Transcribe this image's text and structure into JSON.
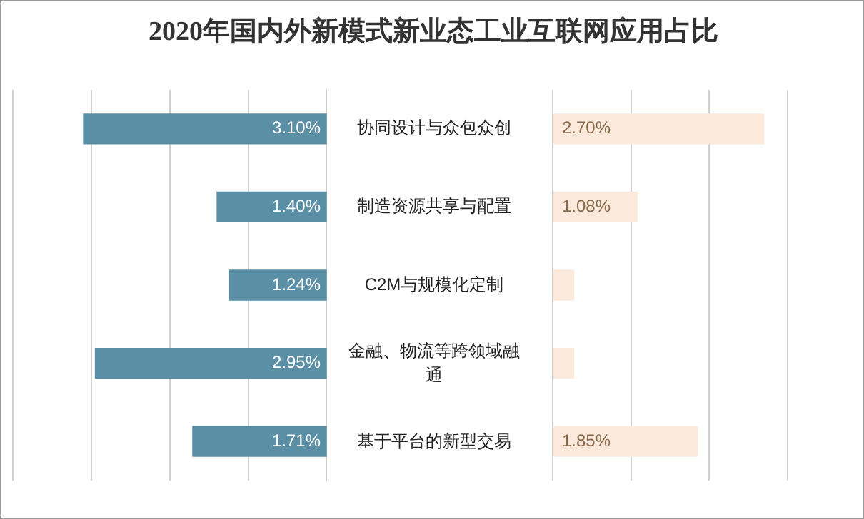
{
  "chart_data": [
    {
      "type": "bar",
      "title": "2020年国内外新模式新业态工业互联网应用占比",
      "orientation": "horizontal",
      "categories": [
        "协同设计与众包众创",
        "制造资源共享与配置",
        "C2M与规模化定制",
        "金融、物流等跨领域融通",
        "基于平台的新型交易"
      ],
      "series": [
        {
          "color": "#5b8fa6",
          "values": [
            3.1,
            1.4,
            1.24,
            2.95,
            1.71
          ],
          "value_labels": [
            "3.10%",
            "1.40%",
            "1.24%",
            "2.95%",
            "1.71%"
          ]
        }
      ],
      "xlim": [
        4,
        0
      ],
      "xticks": [
        {
          "value": 4,
          "label": null
        },
        {
          "value": 3,
          "label": null
        },
        {
          "value": 2,
          "label": null
        },
        {
          "value": 1,
          "label": null
        },
        {
          "value": 0,
          "label": null
        }
      ],
      "grid": "x",
      "tick_labels": "y",
      "legend": false
    },
    {
      "type": "bar",
      "orientation": "horizontal",
      "categories": [
        null,
        null,
        null,
        null,
        null
      ],
      "series": [
        {
          "color": "#fbeadb",
          "values": [
            2.7,
            1.08,
            0.27,
            0.27,
            1.85
          ],
          "value_labels": [
            "2.70%",
            "1.08%",
            null,
            null,
            "1.85%"
          ]
        }
      ],
      "xlim": [
        0,
        4
      ],
      "xticks": [
        {
          "value": 0,
          "label": null
        },
        {
          "value": 1,
          "label": null
        },
        {
          "value": 2,
          "label": null
        },
        {
          "value": 3,
          "label": null
        },
        {
          "value": 4,
          "label": null
        }
      ],
      "grid": "x",
      "tick_labels": false,
      "legend": false
    }
  ]
}
